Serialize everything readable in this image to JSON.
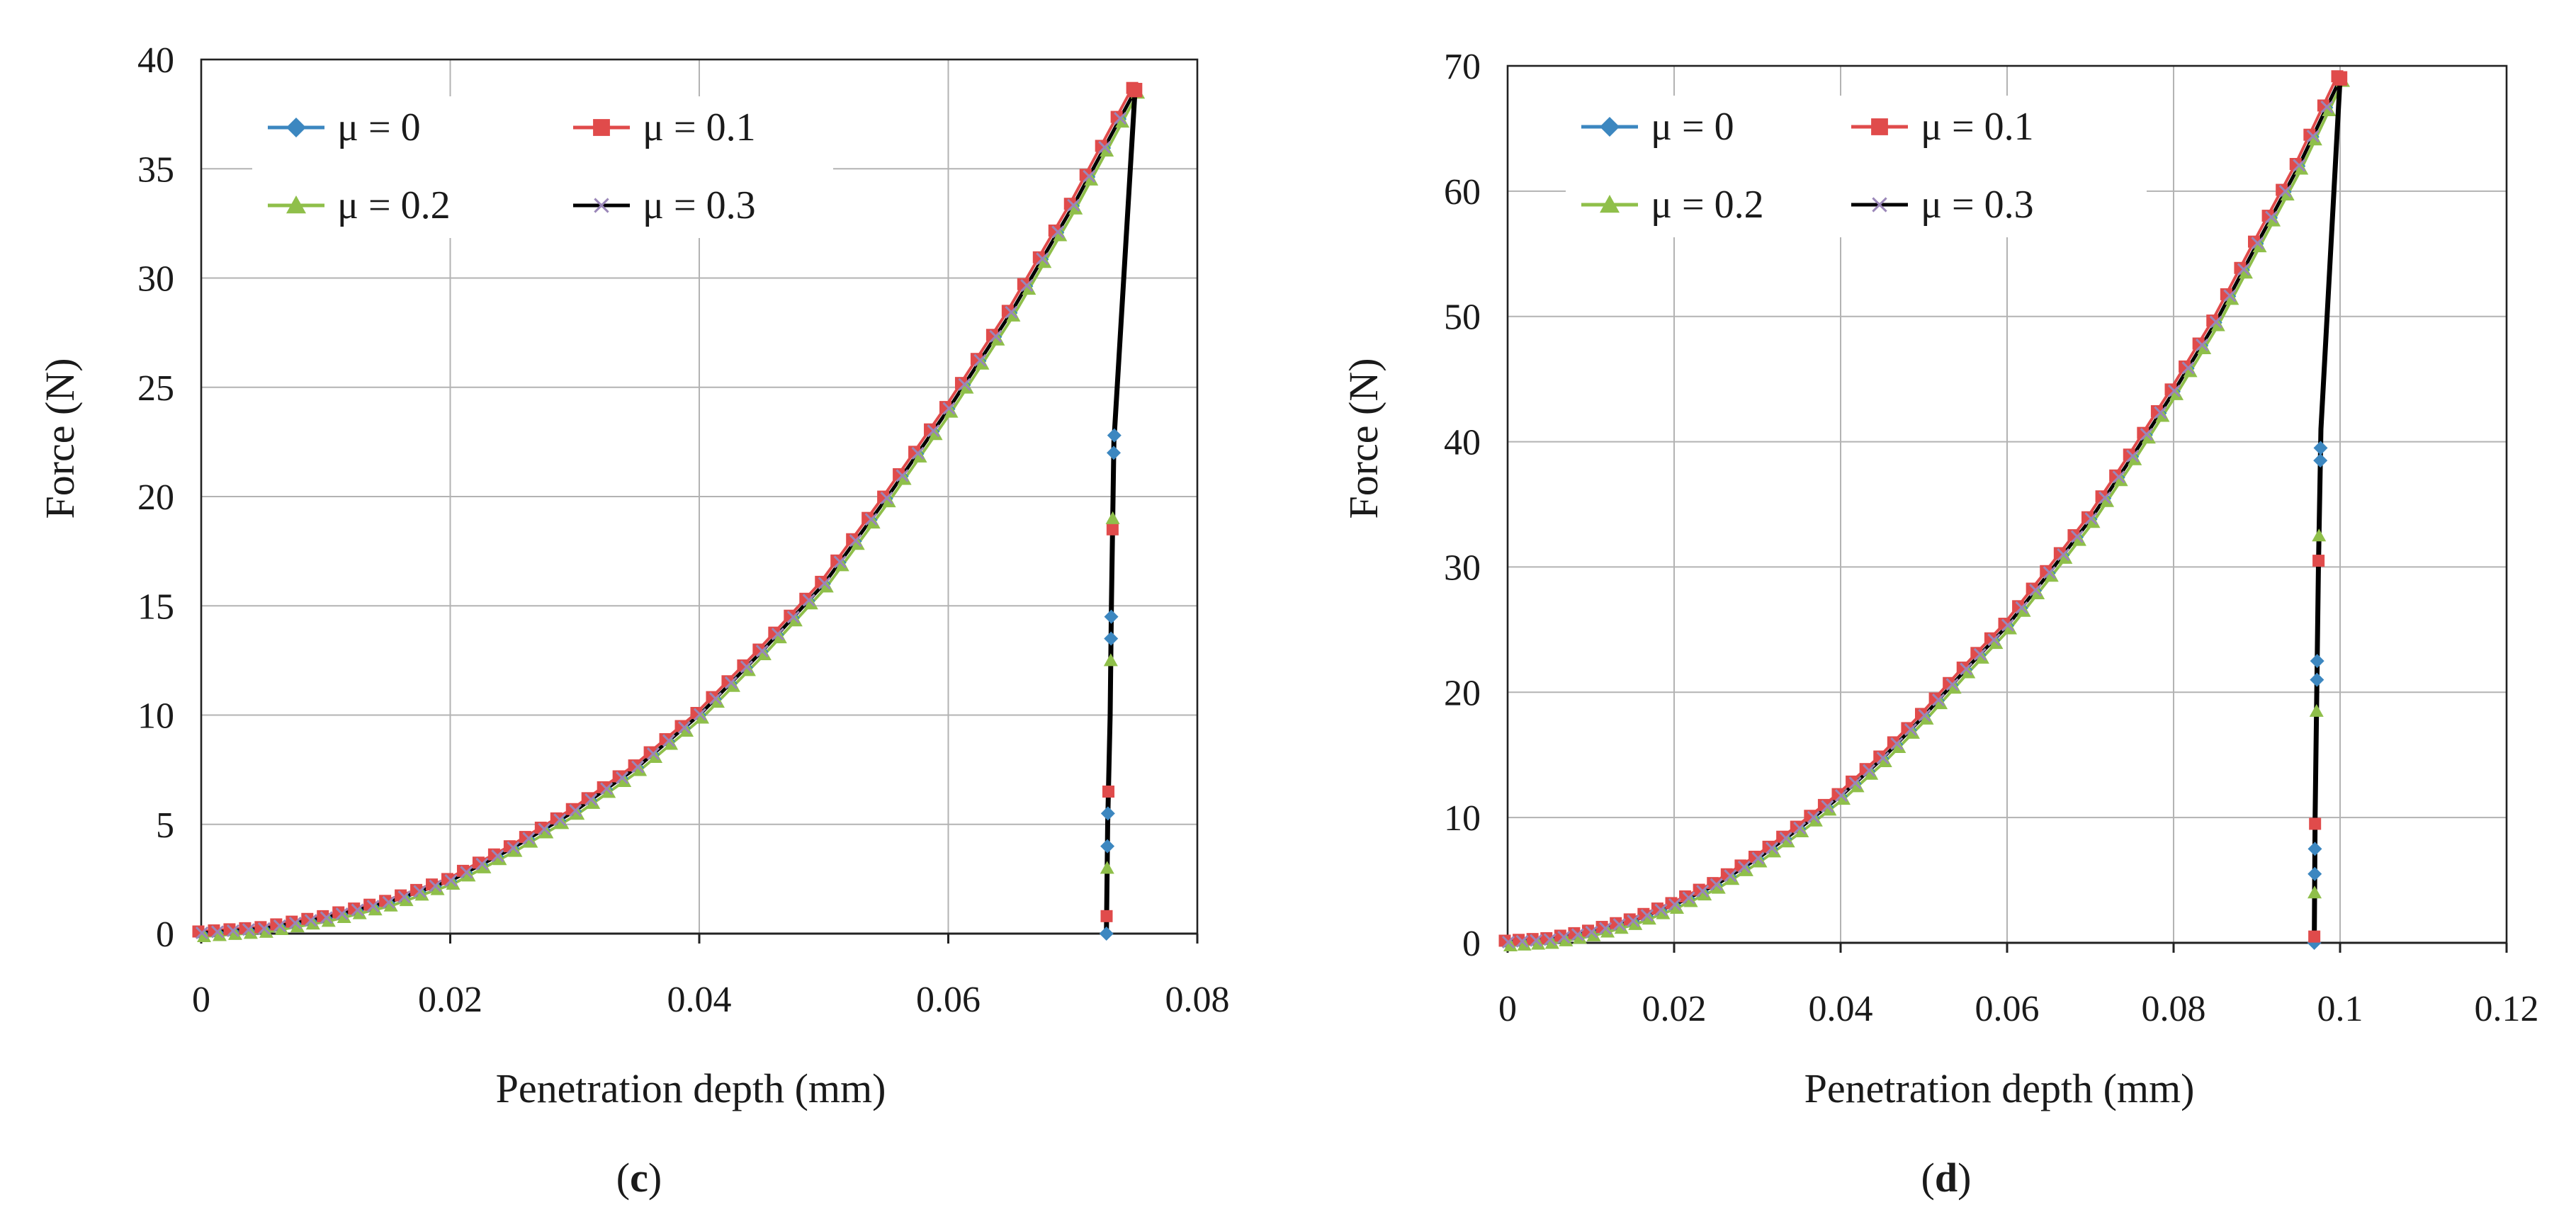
{
  "colors": {
    "mu0": "#3c87c0",
    "mu01": "#e04b4b",
    "mu02": "#8fbf4a",
    "mu03": "#000000",
    "cross_marker": "#9a86b8",
    "grid": "#b3b3b3"
  },
  "chart_data": [
    {
      "id": "c",
      "type": "line",
      "caption_open": "(",
      "caption_letter": "c",
      "caption_close": ")",
      "xlabel": "Penetration depth (mm)",
      "ylabel": "Force (N)",
      "xlim": [
        0,
        0.08
      ],
      "ylim": [
        0,
        40
      ],
      "x_ticks": [
        "0",
        "0.02",
        "0.04",
        "0.06",
        "0.08"
      ],
      "y_ticks": [
        "0",
        "5",
        "10",
        "15",
        "20",
        "25",
        "30",
        "35",
        "40"
      ],
      "legend": [
        "μ = 0",
        "μ = 0.1",
        "μ = 0.2",
        "μ = 0.3"
      ],
      "loading_curve": {
        "x": [
          0,
          0.005,
          0.01,
          0.015,
          0.02,
          0.025,
          0.03,
          0.035,
          0.04,
          0.045,
          0.05,
          0.055,
          0.06,
          0.065,
          0.07,
          0.075
        ],
        "y": [
          0,
          0.2,
          0.7,
          1.4,
          2.4,
          3.9,
          5.6,
          7.6,
          10.0,
          12.9,
          16.0,
          19.9,
          24.0,
          28.4,
          33.3,
          38.6
        ]
      },
      "unloading_curve": {
        "x": [
          0.075,
          0.0733,
          0.0731,
          0.073,
          0.0728,
          0.0727
        ],
        "y": [
          38.6,
          22.5,
          15,
          10,
          5,
          0
        ]
      },
      "unloading_markers": [
        0,
        0.8,
        3,
        4,
        5.5,
        6.5,
        12.5,
        13.5,
        14.5,
        18.5,
        19,
        22,
        22.8
      ]
    },
    {
      "id": "d",
      "type": "line",
      "caption_open": "(",
      "caption_letter": "d",
      "caption_close": ")",
      "xlabel": "Penetration depth (mm)",
      "ylabel": "Force (N)",
      "xlim": [
        0,
        0.12
      ],
      "ylim": [
        0,
        70
      ],
      "x_ticks": [
        "0",
        "0.02",
        "0.04",
        "0.06",
        "0.08",
        "0.1",
        "0.12"
      ],
      "y_ticks": [
        "0",
        "10",
        "20",
        "30",
        "40",
        "50",
        "60",
        "70"
      ],
      "legend": [
        "μ = 0",
        "μ = 0.1",
        "μ = 0.2",
        "μ = 0.3"
      ],
      "loading_curve": {
        "x": [
          0,
          0.005,
          0.01,
          0.015,
          0.02,
          0.025,
          0.03,
          0.035,
          0.04,
          0.045,
          0.05,
          0.055,
          0.06,
          0.065,
          0.07,
          0.075,
          0.08,
          0.085,
          0.09,
          0.095,
          0.1
        ],
        "y": [
          0,
          0.2,
          0.8,
          1.7,
          3.0,
          4.6,
          6.7,
          9.1,
          11.7,
          14.7,
          18.1,
          21.8,
          25.3,
          29.5,
          33.8,
          38.8,
          44.0,
          49.5,
          55.8,
          62.0,
          69.0
        ]
      },
      "unloading_curve": {
        "x": [
          0.1,
          0.0977,
          0.0974,
          0.0972,
          0.097,
          0.0969
        ],
        "y": [
          69.0,
          41,
          30,
          20,
          10,
          0
        ]
      },
      "unloading_markers": [
        0,
        0.5,
        4,
        5.5,
        7.5,
        9.5,
        18.5,
        21,
        22.5,
        30.5,
        32.5,
        38.5,
        39.5
      ]
    }
  ]
}
